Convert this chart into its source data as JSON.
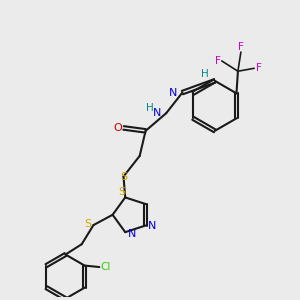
{
  "bg_color": "#ebebeb",
  "bond_color": "#1a1a1a",
  "colors": {
    "N": "#0000dd",
    "O": "#cc0000",
    "S": "#ccaa00",
    "F": "#cc00cc",
    "Cl": "#33cc00",
    "H": "#008888",
    "C": "#1a1a1a"
  },
  "figsize": [
    3.0,
    3.0
  ],
  "dpi": 100
}
